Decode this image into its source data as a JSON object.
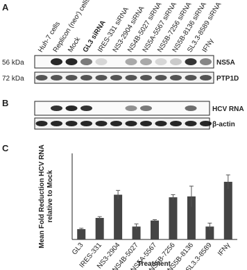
{
  "panels": {
    "a": "A",
    "b": "B",
    "c": "C"
  },
  "blot_a": {
    "lanes": [
      "Huh-7 cells",
      "Replicon (neoʳ) cells",
      "Mock",
      "GL3 siRNA",
      "IRES-331 siRNA",
      "NS3-2904 siRNA",
      "NS4B-5027 siRNA",
      "NS5A-5567 siRNA",
      "NS5B-7256 siRNA",
      "NS5B-8136 siRNA",
      "SL3.3-8589 siRNA",
      "IFNγ"
    ],
    "rows": [
      {
        "size": "56 kDa",
        "label": "NS5A"
      },
      {
        "size": "72 kDa",
        "label": "PTP1D"
      }
    ]
  },
  "blot_b": {
    "rows": [
      {
        "label": "HCV RNA"
      },
      {
        "label": "β-actin"
      }
    ]
  },
  "chart_data": {
    "type": "bar",
    "ylabel": "Mean Fold Reduction HCV RNA relative to Mock",
    "xlabel": "Treatment",
    "categories": [
      "GL3",
      "IRES-331",
      "NS3-2904",
      "NS4B-5027",
      "NS5A-5567",
      "NS5B-7256",
      "NS5B-8136",
      "SL3.3-8589",
      "IFNγ"
    ],
    "values": [
      1.2,
      2.5,
      5.2,
      1.5,
      2.2,
      4.9,
      5.0,
      1.5,
      6.7
    ],
    "errors": [
      0.1,
      0.15,
      0.5,
      0.3,
      0.1,
      0.3,
      1.2,
      0.4,
      0.8
    ],
    "color": "#444444",
    "ylim": [
      0,
      10
    ]
  }
}
